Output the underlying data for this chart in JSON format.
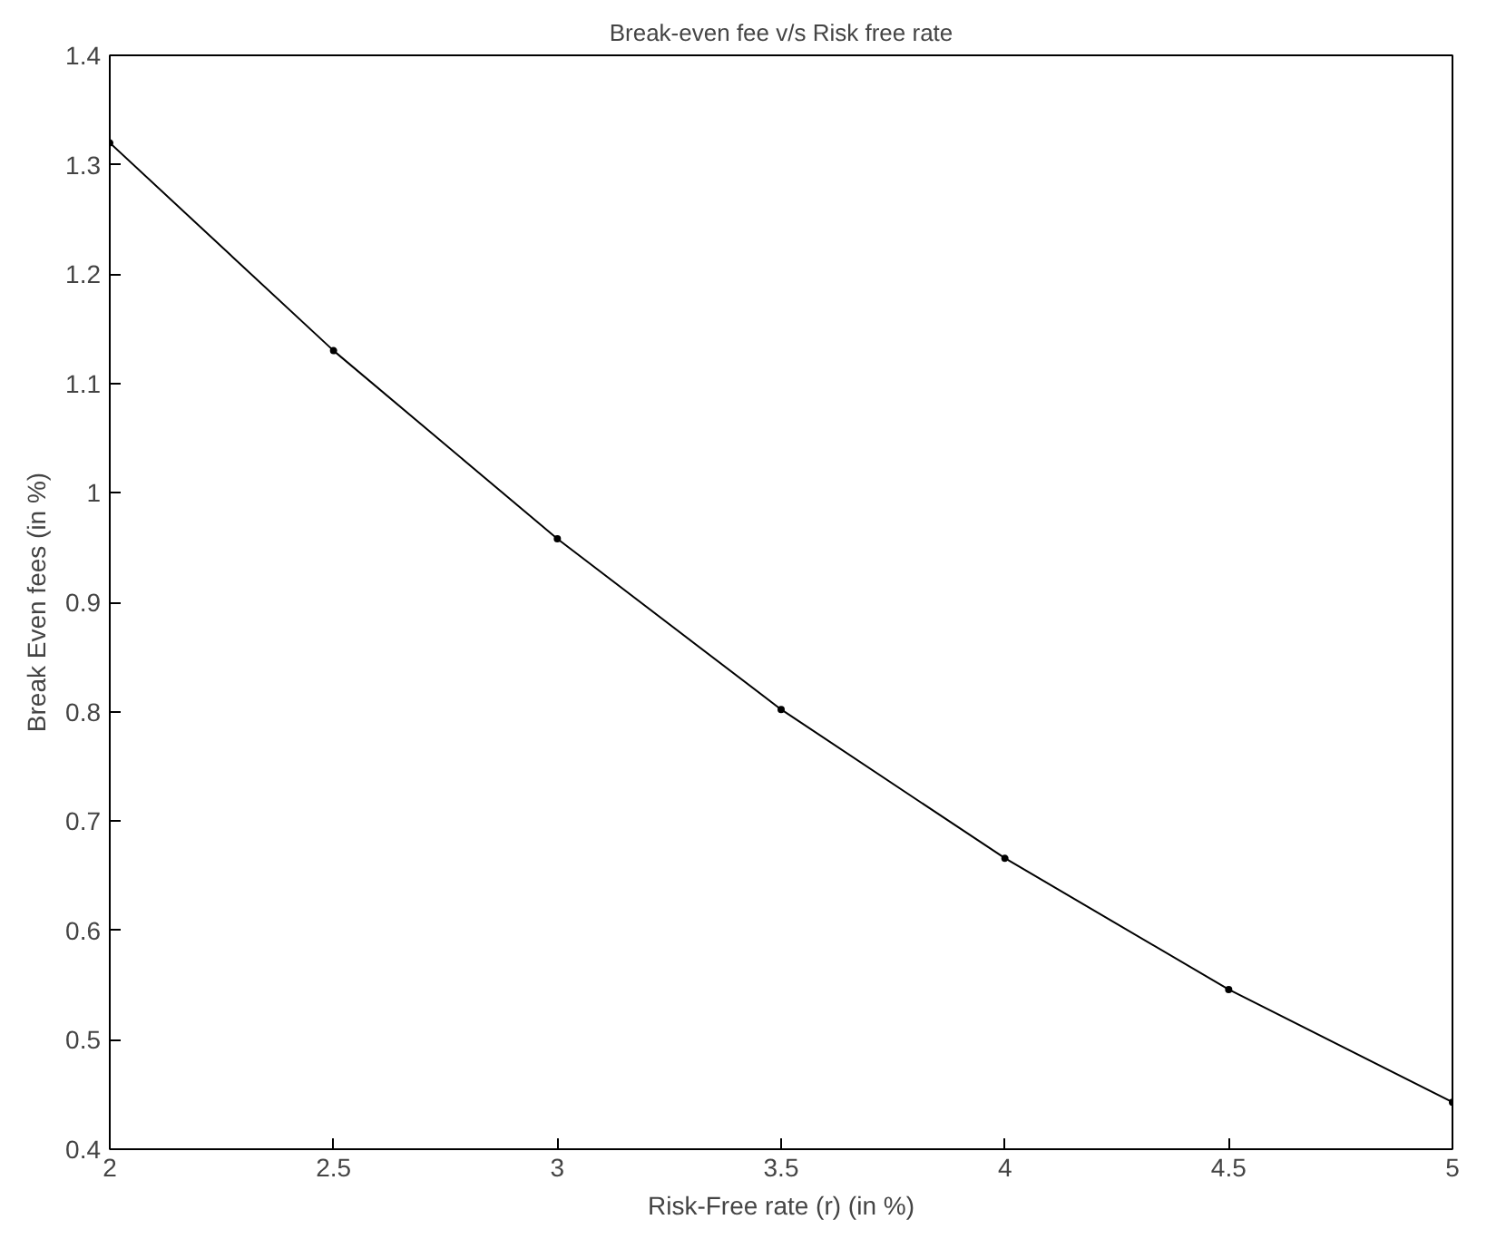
{
  "chart_data": {
    "type": "line",
    "title": "Break-even fee v/s Risk free rate",
    "xlabel": "Risk-Free rate (r) (in %)",
    "ylabel": "Break Even fees (in %)",
    "x": [
      2,
      2.5,
      3,
      3.5,
      4,
      4.5,
      5
    ],
    "series": [
      {
        "color": "#000000",
        "values": [
          1.32,
          1.13,
          0.958,
          0.802,
          0.666,
          0.546,
          0.443
        ]
      }
    ],
    "xlim": [
      2,
      5
    ],
    "xticks": [
      2,
      2.5,
      3,
      3.5,
      4,
      4.5,
      5
    ],
    "ylim": [
      0.4,
      1.4
    ],
    "yticks": [
      0.4,
      0.5,
      0.6,
      0.7,
      0.8,
      0.9,
      1,
      1.1,
      1.2,
      1.3,
      1.4
    ],
    "grid": false,
    "marker": "circle",
    "line_style": "solid"
  }
}
